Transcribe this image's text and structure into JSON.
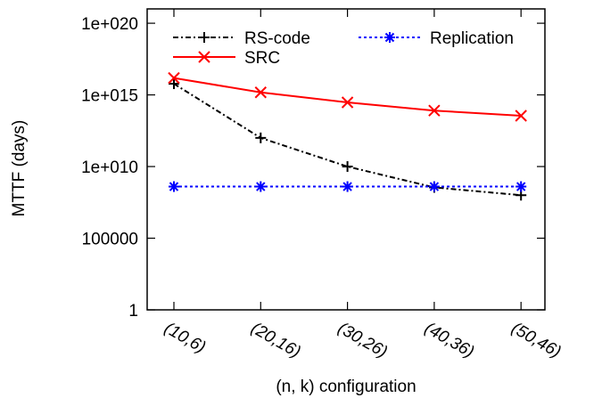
{
  "chart_data": {
    "type": "line",
    "xlabel": "(n, k) configuration",
    "ylabel": "MTTF (days)",
    "y_scale": "log",
    "ylim": [
      1,
      1e+21
    ],
    "y_ticks": [
      {
        "value": 1,
        "label": "1"
      },
      {
        "value": 100000,
        "label": "100000"
      },
      {
        "value": 10000000000.0,
        "label": "1e+010"
      },
      {
        "value": 1000000000000000.0,
        "label": "1e+015"
      },
      {
        "value": 1e+20,
        "label": "1e+020"
      }
    ],
    "categories": [
      "(10,6)",
      "(20,16)",
      "(30,26)",
      "(40,36)",
      "(50,46)"
    ],
    "legend_position": "top",
    "series": [
      {
        "name": "RS-code",
        "values": [
          6000000000000000.0,
          1000000000000.0,
          10000000000.0,
          350000000.0,
          100000000.0
        ],
        "color": "#000000",
        "style": "dashdot",
        "marker": "plus"
      },
      {
        "name": "Replication",
        "values": [
          400000000.0,
          400000000.0,
          400000000.0,
          400000000.0,
          400000000.0
        ],
        "color": "#0000ff",
        "style": "dotted",
        "marker": "asterisk"
      },
      {
        "name": "SRC",
        "values": [
          1.5e+16,
          1500000000000000.0,
          300000000000000.0,
          80000000000000.0,
          35000000000000.0
        ],
        "color": "#ff0000",
        "style": "solid",
        "marker": "cross"
      }
    ]
  }
}
